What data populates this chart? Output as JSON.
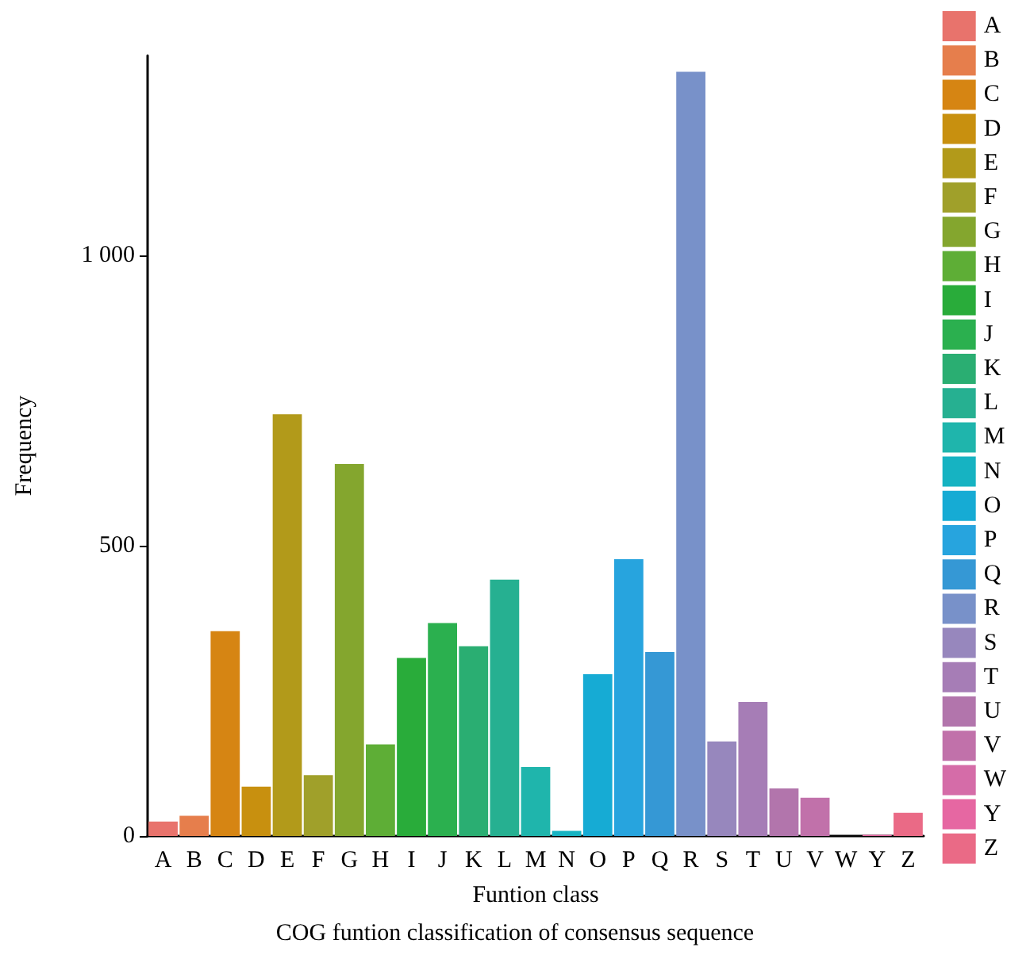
{
  "chart_data": {
    "type": "bar",
    "xlabel": "Funtion class",
    "ylabel": "Frequency",
    "annotations": [
      "COG funtion classification of consensus sequence"
    ],
    "categories": [
      "A",
      "B",
      "C",
      "D",
      "E",
      "F",
      "G",
      "H",
      "I",
      "J",
      "K",
      "L",
      "M",
      "N",
      "O",
      "P",
      "Q",
      "R",
      "S",
      "T",
      "U",
      "V",
      "W",
      "Y",
      "Z"
    ],
    "stacked": true,
    "series": [
      {
        "name": "A",
        "color": "#e8736c",
        "values": [
          25,
          null,
          null,
          null,
          null,
          null,
          null,
          null,
          null,
          null,
          null,
          null,
          null,
          null,
          null,
          null,
          null,
          null,
          null,
          null,
          null,
          null,
          null,
          null,
          null
        ]
      },
      {
        "name": "B",
        "color": "#e67e4c",
        "values": [
          null,
          35,
          null,
          null,
          null,
          null,
          null,
          null,
          null,
          null,
          null,
          null,
          null,
          null,
          null,
          null,
          null,
          null,
          null,
          null,
          null,
          null,
          null,
          null,
          null
        ]
      },
      {
        "name": "C",
        "color": "#d68513",
        "values": [
          null,
          null,
          353,
          null,
          null,
          null,
          null,
          null,
          null,
          null,
          null,
          null,
          null,
          null,
          null,
          null,
          null,
          null,
          null,
          null,
          null,
          null,
          null,
          null,
          null
        ]
      },
      {
        "name": "D",
        "color": "#c8900f",
        "values": [
          null,
          null,
          null,
          85,
          null,
          null,
          null,
          null,
          null,
          null,
          null,
          null,
          null,
          null,
          null,
          null,
          null,
          null,
          null,
          null,
          null,
          null,
          null,
          null,
          null
        ]
      },
      {
        "name": "E",
        "color": "#b29a1a",
        "values": [
          null,
          null,
          null,
          null,
          727,
          null,
          null,
          null,
          null,
          null,
          null,
          null,
          null,
          null,
          null,
          null,
          null,
          null,
          null,
          null,
          null,
          null,
          null,
          null,
          null
        ]
      },
      {
        "name": "F",
        "color": "#a0a02a",
        "values": [
          null,
          null,
          null,
          null,
          null,
          105,
          null,
          null,
          null,
          null,
          null,
          null,
          null,
          null,
          null,
          null,
          null,
          null,
          null,
          null,
          null,
          null,
          null,
          null,
          null
        ]
      },
      {
        "name": "G",
        "color": "#84a62e",
        "values": [
          null,
          null,
          null,
          null,
          null,
          null,
          641,
          null,
          null,
          null,
          null,
          null,
          null,
          null,
          null,
          null,
          null,
          null,
          null,
          null,
          null,
          null,
          null,
          null,
          null
        ]
      },
      {
        "name": "H",
        "color": "#5eae36",
        "values": [
          null,
          null,
          null,
          null,
          null,
          null,
          null,
          158,
          null,
          null,
          null,
          null,
          null,
          null,
          null,
          null,
          null,
          null,
          null,
          null,
          null,
          null,
          null,
          null,
          null
        ]
      },
      {
        "name": "I",
        "color": "#29ac3a",
        "values": [
          null,
          null,
          null,
          null,
          null,
          null,
          null,
          null,
          307,
          null,
          null,
          null,
          null,
          null,
          null,
          null,
          null,
          null,
          null,
          null,
          null,
          null,
          null,
          null,
          null
        ]
      },
      {
        "name": "J",
        "color": "#2bb04f",
        "values": [
          null,
          null,
          null,
          null,
          null,
          null,
          null,
          null,
          null,
          367,
          null,
          null,
          null,
          null,
          null,
          null,
          null,
          null,
          null,
          null,
          null,
          null,
          null,
          null,
          null
        ]
      },
      {
        "name": "K",
        "color": "#2aae72",
        "values": [
          null,
          null,
          null,
          null,
          null,
          null,
          null,
          null,
          null,
          null,
          327,
          null,
          null,
          null,
          null,
          null,
          null,
          null,
          null,
          null,
          null,
          null,
          null,
          null,
          null
        ]
      },
      {
        "name": "L",
        "color": "#26b091",
        "values": [
          null,
          null,
          null,
          null,
          null,
          null,
          null,
          null,
          null,
          null,
          null,
          442,
          null,
          null,
          null,
          null,
          null,
          null,
          null,
          null,
          null,
          null,
          null,
          null,
          null
        ]
      },
      {
        "name": "M",
        "color": "#1fb5ac",
        "values": [
          null,
          null,
          null,
          null,
          null,
          null,
          null,
          null,
          null,
          null,
          null,
          null,
          119,
          null,
          null,
          null,
          null,
          null,
          null,
          null,
          null,
          null,
          null,
          null,
          null
        ]
      },
      {
        "name": "N",
        "color": "#16b3c2",
        "values": [
          null,
          null,
          null,
          null,
          null,
          null,
          null,
          null,
          null,
          null,
          null,
          null,
          null,
          9,
          null,
          null,
          null,
          null,
          null,
          null,
          null,
          null,
          null,
          null,
          null
        ]
      },
      {
        "name": "O",
        "color": "#16abd4",
        "values": [
          null,
          null,
          null,
          null,
          null,
          null,
          null,
          null,
          null,
          null,
          null,
          null,
          null,
          null,
          279,
          null,
          null,
          null,
          null,
          null,
          null,
          null,
          null,
          null,
          null
        ]
      },
      {
        "name": "P",
        "color": "#27a4de",
        "values": [
          null,
          null,
          null,
          null,
          null,
          null,
          null,
          null,
          null,
          null,
          null,
          null,
          null,
          null,
          null,
          477,
          null,
          null,
          null,
          null,
          null,
          null,
          null,
          null,
          null
        ]
      },
      {
        "name": "Q",
        "color": "#3598d5",
        "values": [
          null,
          null,
          null,
          null,
          null,
          null,
          null,
          null,
          null,
          null,
          null,
          null,
          null,
          null,
          null,
          null,
          317,
          null,
          null,
          null,
          null,
          null,
          null,
          null,
          null
        ]
      },
      {
        "name": "R",
        "color": "#7891c9",
        "values": [
          null,
          null,
          null,
          null,
          null,
          null,
          null,
          null,
          null,
          null,
          null,
          null,
          null,
          null,
          null,
          null,
          null,
          1317,
          null,
          null,
          null,
          null,
          null,
          null,
          null
        ]
      },
      {
        "name": "S",
        "color": "#9787bd",
        "values": [
          null,
          null,
          null,
          null,
          null,
          null,
          null,
          null,
          null,
          null,
          null,
          null,
          null,
          null,
          null,
          null,
          null,
          null,
          163,
          null,
          null,
          null,
          null,
          null,
          null
        ]
      },
      {
        "name": "T",
        "color": "#a67db6",
        "values": [
          null,
          null,
          null,
          null,
          null,
          null,
          null,
          null,
          null,
          null,
          null,
          null,
          null,
          null,
          null,
          null,
          null,
          null,
          null,
          231,
          null,
          null,
          null,
          null,
          null
        ]
      },
      {
        "name": "U",
        "color": "#b275ac",
        "values": [
          null,
          null,
          null,
          null,
          null,
          null,
          null,
          null,
          null,
          null,
          null,
          null,
          null,
          null,
          null,
          null,
          null,
          null,
          null,
          null,
          82,
          null,
          null,
          null,
          null
        ]
      },
      {
        "name": "V",
        "color": "#c171aa",
        "values": [
          null,
          null,
          null,
          null,
          null,
          null,
          null,
          null,
          null,
          null,
          null,
          null,
          null,
          null,
          null,
          null,
          null,
          null,
          null,
          null,
          null,
          66,
          null,
          null,
          null
        ]
      },
      {
        "name": "W",
        "color": "#d56ca8",
        "values": [
          null,
          null,
          null,
          null,
          null,
          null,
          null,
          null,
          null,
          null,
          null,
          null,
          null,
          null,
          null,
          null,
          null,
          null,
          null,
          null,
          null,
          null,
          0,
          null,
          null
        ]
      },
      {
        "name": "Y",
        "color": "#e667a2",
        "values": [
          null,
          null,
          null,
          null,
          null,
          null,
          null,
          null,
          null,
          null,
          null,
          null,
          null,
          null,
          null,
          null,
          null,
          null,
          null,
          null,
          null,
          null,
          null,
          2,
          null
        ]
      },
      {
        "name": "Z",
        "color": "#ea6a86",
        "values": [
          null,
          null,
          null,
          null,
          null,
          null,
          null,
          null,
          null,
          null,
          null,
          null,
          null,
          null,
          null,
          null,
          null,
          null,
          null,
          null,
          null,
          null,
          null,
          null,
          40
        ]
      }
    ],
    "ylim": [
      0,
      1345
    ],
    "yticks": [
      0,
      500,
      {
        "value": 1000,
        "label": "1 000"
      }
    ],
    "grid": false,
    "legend": "right"
  }
}
